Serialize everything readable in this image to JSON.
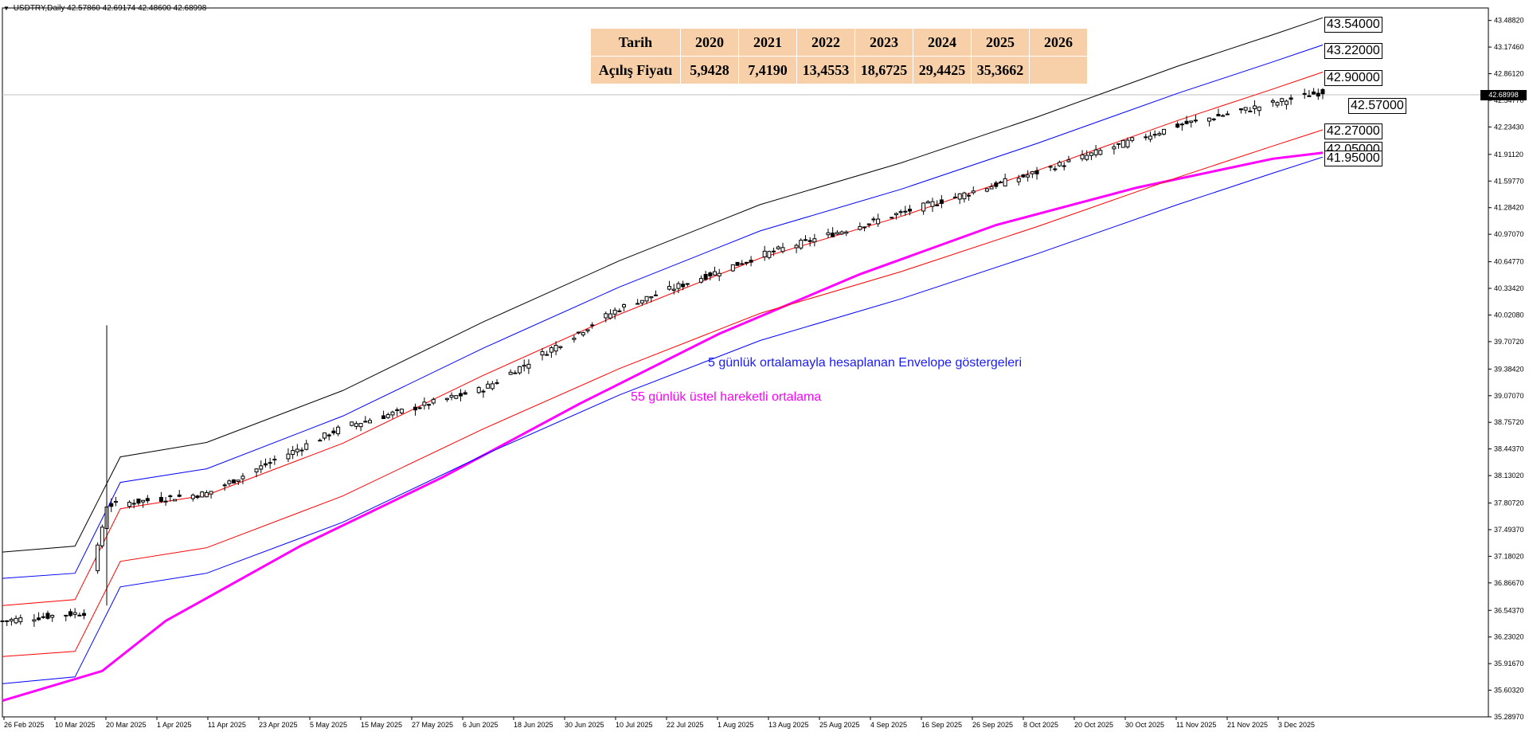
{
  "symbol": {
    "title": "USDTRY,Daily",
    "ohlc": "42.57860 42.69174 42.48600 42.68998"
  },
  "table": {
    "header_label": "Tarih",
    "years": [
      "2020",
      "2021",
      "2022",
      "2023",
      "2024",
      "2025",
      "2026"
    ],
    "row_label": "Açılış Fiyatı",
    "values": [
      "5,9428",
      "7,4190",
      "13,4553",
      "18,6725",
      "29,4425",
      "35,3662",
      ""
    ]
  },
  "annotations": {
    "envelope_text": "5 günlük ortalamayla hesaplanan Envelope göstergeleri",
    "ema_text": "55 günlük üstel hareketli ortalama"
  },
  "levels": [
    "43.54000",
    "43.22000",
    "42.90000",
    "42.57000",
    "42.27000",
    "42.05000",
    "41.95000"
  ],
  "current_price": "42.68998",
  "colors": {
    "outer_envelope": "#000000",
    "mid_envelope": "#0000ff",
    "inner_envelope": "#ff0000",
    "ema": "#ff00ff",
    "table_bg": "#f7cfa9"
  },
  "chart_data": {
    "type": "line",
    "ylim": [
      35.2897,
      43.635
    ],
    "yticks": [
      "43.48820",
      "43.17460",
      "42.86120",
      "42.54770",
      "42.23430",
      "41.91120",
      "41.59770",
      "41.28420",
      "40.97070",
      "40.64770",
      "40.33420",
      "40.02080",
      "39.70720",
      "39.38420",
      "39.07070",
      "38.75720",
      "38.44370",
      "38.13020",
      "37.80720",
      "37.49370",
      "37.18020",
      "36.86670",
      "36.54370",
      "36.23020",
      "35.91670",
      "35.60320",
      "35.28970"
    ],
    "xticks": [
      "26 Feb 2025",
      "10 Mar 2025",
      "20 Mar 2025",
      "1 Apr 2025",
      "11 Apr 2025",
      "23 Apr 2025",
      "5 May 2025",
      "15 May 2025",
      "27 May 2025",
      "6 Jun 2025",
      "18 Jun 2025",
      "30 Jun 2025",
      "10 Jul 2025",
      "22 Jul 2025",
      "1 Aug 2025",
      "13 Aug 2025",
      "25 Aug 2025",
      "4 Sep 2025",
      "16 Sep 2025",
      "26 Sep 2025",
      "8 Oct 2025",
      "20 Oct 2025",
      "30 Oct 2025",
      "11 Nov 2025",
      "21 Nov 2025",
      "3 Dec 2025"
    ],
    "x_start": "2025-02-24",
    "x_end": "2025-12-12",
    "ema_points": [
      [
        "2025-02-24",
        35.48
      ],
      [
        "2025-03-18",
        35.83
      ],
      [
        "2025-04-01",
        36.42
      ],
      [
        "2025-05-01",
        37.31
      ],
      [
        "2025-06-01",
        38.11
      ],
      [
        "2025-07-01",
        38.97
      ],
      [
        "2025-08-01",
        39.8
      ],
      [
        "2025-09-01",
        40.5
      ],
      [
        "2025-10-01",
        41.08
      ],
      [
        "2025-11-01",
        41.52
      ],
      [
        "2025-12-01",
        41.86
      ],
      [
        "2025-12-12",
        41.93
      ]
    ],
    "series": [
      {
        "color": "#000000",
        "points": [
          [
            "2025-02-24",
            37.23
          ],
          [
            "2025-03-12",
            37.3
          ],
          [
            "2025-03-22",
            38.35
          ],
          [
            "2025-04-10",
            38.52
          ],
          [
            "2025-05-10",
            39.13
          ],
          [
            "2025-06-10",
            39.94
          ],
          [
            "2025-07-10",
            40.66
          ],
          [
            "2025-08-10",
            41.32
          ],
          [
            "2025-09-10",
            41.81
          ],
          [
            "2025-10-10",
            42.35
          ],
          [
            "2025-11-10",
            42.95
          ],
          [
            "2025-12-01",
            43.32
          ],
          [
            "2025-12-12",
            43.52
          ]
        ]
      },
      {
        "color": "#0000ff",
        "points": [
          [
            "2025-02-24",
            36.92
          ],
          [
            "2025-03-12",
            36.98
          ],
          [
            "2025-03-22",
            38.05
          ],
          [
            "2025-04-10",
            38.21
          ],
          [
            "2025-05-10",
            38.83
          ],
          [
            "2025-06-10",
            39.63
          ],
          [
            "2025-07-10",
            40.35
          ],
          [
            "2025-08-10",
            41.01
          ],
          [
            "2025-09-10",
            41.5
          ],
          [
            "2025-10-10",
            42.04
          ],
          [
            "2025-11-10",
            42.63
          ],
          [
            "2025-12-01",
            43.0
          ],
          [
            "2025-12-12",
            43.2
          ]
        ]
      },
      {
        "color": "#ff0000",
        "points": [
          [
            "2025-02-24",
            36.6
          ],
          [
            "2025-03-12",
            36.67
          ],
          [
            "2025-03-22",
            37.74
          ],
          [
            "2025-04-10",
            37.9
          ],
          [
            "2025-05-10",
            38.51
          ],
          [
            "2025-06-10",
            39.31
          ],
          [
            "2025-07-10",
            40.03
          ],
          [
            "2025-08-10",
            40.69
          ],
          [
            "2025-09-10",
            41.18
          ],
          [
            "2025-10-10",
            41.72
          ],
          [
            "2025-11-10",
            42.31
          ],
          [
            "2025-12-01",
            42.68
          ],
          [
            "2025-12-12",
            42.88
          ]
        ]
      },
      {
        "color": "#ff0000",
        "points": [
          [
            "2025-02-24",
            36.0
          ],
          [
            "2025-03-12",
            36.06
          ],
          [
            "2025-03-22",
            37.12
          ],
          [
            "2025-04-10",
            37.28
          ],
          [
            "2025-05-10",
            37.89
          ],
          [
            "2025-06-10",
            38.68
          ],
          [
            "2025-07-10",
            39.39
          ],
          [
            "2025-08-10",
            40.04
          ],
          [
            "2025-09-10",
            40.53
          ],
          [
            "2025-10-10",
            41.06
          ],
          [
            "2025-11-10",
            41.64
          ],
          [
            "2025-12-01",
            42.01
          ],
          [
            "2025-12-12",
            42.2
          ]
        ]
      },
      {
        "color": "#0000ff",
        "points": [
          [
            "2025-02-24",
            35.68
          ],
          [
            "2025-03-12",
            35.76
          ],
          [
            "2025-03-22",
            36.82
          ],
          [
            "2025-04-10",
            36.98
          ],
          [
            "2025-05-10",
            37.58
          ],
          [
            "2025-06-10",
            38.37
          ],
          [
            "2025-07-10",
            39.08
          ],
          [
            "2025-08-10",
            39.72
          ],
          [
            "2025-09-10",
            40.21
          ],
          [
            "2025-10-10",
            40.74
          ],
          [
            "2025-11-10",
            41.32
          ],
          [
            "2025-12-01",
            41.69
          ],
          [
            "2025-12-12",
            41.88
          ]
        ]
      }
    ],
    "candles": {
      "start": "2025-02-24",
      "end": "2025-12-12",
      "close_points": [
        [
          "2025-02-24",
          36.42
        ],
        [
          "2025-03-14",
          36.52
        ],
        [
          "2025-03-19",
          37.78
        ],
        [
          "2025-04-10",
          37.92
        ],
        [
          "2025-05-10",
          38.7
        ],
        [
          "2025-06-10",
          39.15
        ],
        [
          "2025-07-10",
          40.1
        ],
        [
          "2025-08-10",
          40.72
        ],
        [
          "2025-09-10",
          41.22
        ],
        [
          "2025-10-10",
          41.7
        ],
        [
          "2025-11-10",
          42.25
        ],
        [
          "2025-12-12",
          42.65
        ]
      ]
    }
  }
}
